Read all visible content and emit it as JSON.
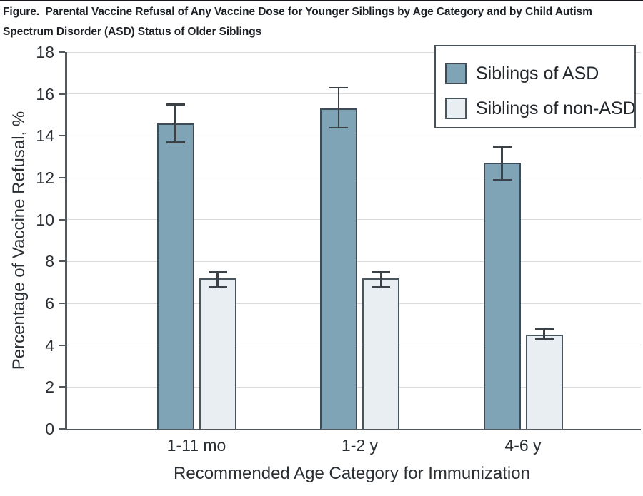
{
  "title": "Figure.  Parental Vaccine Refusal of Any Vaccine Dose for Younger Siblings by Age Category and by Child Autism Spectrum Disorder (ASD) Status of Older Siblings",
  "legend": {
    "items": [
      {
        "label": "Siblings of ASD"
      },
      {
        "label": "Siblings of non-ASD"
      }
    ]
  },
  "chart_data": {
    "type": "bar",
    "categories": [
      "1-11 mo",
      "1-2 y",
      "4-6 y"
    ],
    "series": [
      {
        "name": "Siblings of ASD",
        "color": "#7fa4b6",
        "border_color": "#3e4b54",
        "values": [
          14.6,
          15.3,
          12.7
        ],
        "ci_low": [
          13.7,
          14.4,
          11.9
        ],
        "ci_high": [
          15.5,
          16.3,
          13.5
        ]
      },
      {
        "name": "Siblings of non-ASD",
        "color": "#e8eef2",
        "border_color": "#4a565e",
        "values": [
          7.2,
          7.2,
          4.5
        ],
        "ci_low": [
          6.8,
          6.8,
          4.3
        ],
        "ci_high": [
          7.5,
          7.5,
          4.8
        ]
      }
    ],
    "xlabel": "Recommended Age Category for Immunization",
    "ylabel": "Percentage of Vaccine Refusal, %",
    "ylim": [
      0,
      18
    ],
    "yticks": [
      0,
      2,
      4,
      6,
      8,
      10,
      12,
      14,
      16,
      18
    ],
    "grid": true,
    "error_bars": true,
    "legend_position": "top-right",
    "colors": {
      "gridline": "#d8dbdd",
      "axis": "#53585c",
      "error_bar": "#3a4147",
      "text": "#2a2f34"
    }
  }
}
